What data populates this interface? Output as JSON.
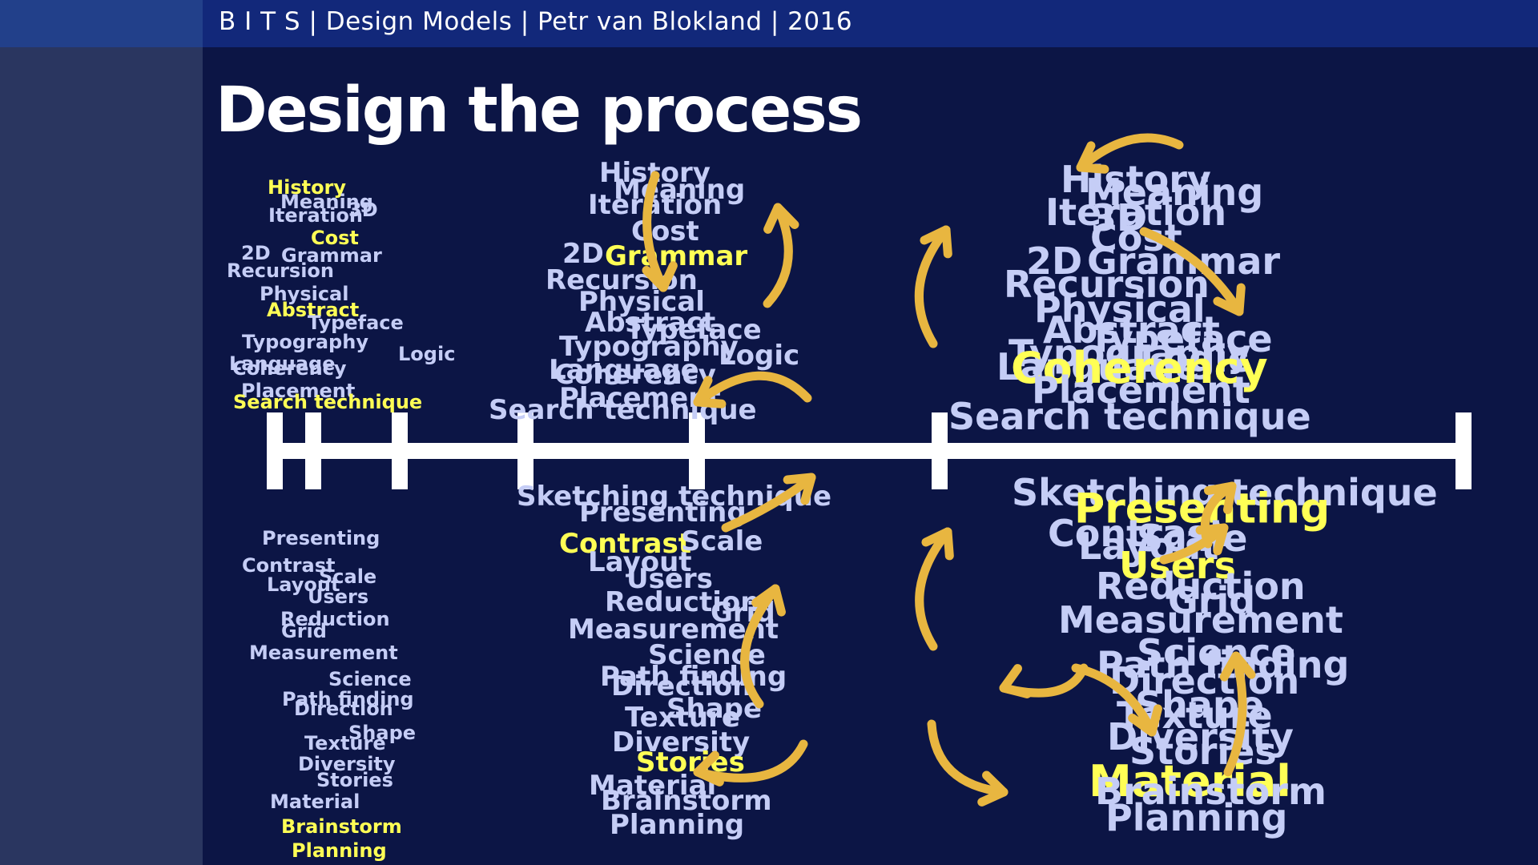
{
  "header": {
    "text": "B I T S | Design Models | Petr van Blokland | 2016"
  },
  "slide": {
    "title": "Design the process"
  },
  "colors": {
    "background": "#0c1545",
    "header": "#12287a",
    "sidebar": "#2a3660",
    "word": "#c5cdf6",
    "highlight": "#ffff55",
    "arrow": "#e8b640",
    "timeline": "#ffffff"
  },
  "columns": [
    {
      "name": "column-1",
      "words": [
        {
          "text": "History",
          "highlight": true
        },
        {
          "text": "Meaning"
        },
        {
          "text": "Iteration"
        },
        {
          "text": "3D"
        },
        {
          "text": "Cost",
          "highlight": true
        },
        {
          "text": "2D"
        },
        {
          "text": "Grammar"
        },
        {
          "text": "Recursion"
        },
        {
          "text": "Physical"
        },
        {
          "text": "Abstract",
          "highlight": true
        },
        {
          "text": "Typeface"
        },
        {
          "text": "Typography"
        },
        {
          "text": "Logic"
        },
        {
          "text": "Language"
        },
        {
          "text": "Coherency"
        },
        {
          "text": "Placement"
        },
        {
          "text": "Search technique",
          "highlight": true
        },
        {
          "text": "Presenting"
        },
        {
          "text": "Contrast"
        },
        {
          "text": "Scale"
        },
        {
          "text": "Layout"
        },
        {
          "text": "Users"
        },
        {
          "text": "Reduction"
        },
        {
          "text": "Grid"
        },
        {
          "text": "Measurement"
        },
        {
          "text": "Science"
        },
        {
          "text": "Path finding"
        },
        {
          "text": "Direction"
        },
        {
          "text": "Shape"
        },
        {
          "text": "Texture"
        },
        {
          "text": "Diversity"
        },
        {
          "text": "Stories"
        },
        {
          "text": "Material"
        },
        {
          "text": "Brainstorm",
          "highlight": true
        },
        {
          "text": "Planning",
          "highlight": true
        }
      ]
    },
    {
      "name": "column-2",
      "words": [
        {
          "text": "History"
        },
        {
          "text": "Meaning"
        },
        {
          "text": "Iteration"
        },
        {
          "text": "Cost"
        },
        {
          "text": "2D"
        },
        {
          "text": "Grammar",
          "highlight": true
        },
        {
          "text": "Recursion"
        },
        {
          "text": "Physical"
        },
        {
          "text": "Abstract"
        },
        {
          "text": "Typeface"
        },
        {
          "text": "Typography"
        },
        {
          "text": "Logic"
        },
        {
          "text": "Language"
        },
        {
          "text": "Coherency"
        },
        {
          "text": "Placement"
        },
        {
          "text": "Search technique"
        },
        {
          "text": "Sketching technique"
        },
        {
          "text": "Presenting"
        },
        {
          "text": "Contrast",
          "highlight": true
        },
        {
          "text": "Scale"
        },
        {
          "text": "Layout"
        },
        {
          "text": "Users"
        },
        {
          "text": "Reduction"
        },
        {
          "text": "Grid"
        },
        {
          "text": "Measurement"
        },
        {
          "text": "Science"
        },
        {
          "text": "Path finding"
        },
        {
          "text": "Direction"
        },
        {
          "text": "Shape"
        },
        {
          "text": "Texture"
        },
        {
          "text": "Diversity"
        },
        {
          "text": "Stories",
          "highlight": true
        },
        {
          "text": "Material"
        },
        {
          "text": "Brainstorm"
        },
        {
          "text": "Planning"
        }
      ]
    },
    {
      "name": "column-3",
      "words": [
        {
          "text": "History"
        },
        {
          "text": "Meaning"
        },
        {
          "text": "Iteration"
        },
        {
          "text": "3D"
        },
        {
          "text": "Cost"
        },
        {
          "text": "2D"
        },
        {
          "text": "Grammar"
        },
        {
          "text": "Recursion"
        },
        {
          "text": "Physical"
        },
        {
          "text": "Abstract"
        },
        {
          "text": "Typeface"
        },
        {
          "text": "Typography"
        },
        {
          "text": "Logic"
        },
        {
          "text": "Language"
        },
        {
          "text": "Coherency",
          "highlight": true
        },
        {
          "text": "Placement"
        },
        {
          "text": "Search technique"
        },
        {
          "text": "Sketching technique"
        },
        {
          "text": "Presenting",
          "highlight": true
        },
        {
          "text": "Contrast"
        },
        {
          "text": "Scale"
        },
        {
          "text": "Layout"
        },
        {
          "text": "Users",
          "highlight": true
        },
        {
          "text": "Reduction"
        },
        {
          "text": "Grid"
        },
        {
          "text": "Measurement"
        },
        {
          "text": "Science"
        },
        {
          "text": "Path finding"
        },
        {
          "text": "Direction"
        },
        {
          "text": "Shape"
        },
        {
          "text": "Texture"
        },
        {
          "text": "Diversity"
        },
        {
          "text": "Stories"
        },
        {
          "text": "Material",
          "highlight": true
        },
        {
          "text": "Brainstorm"
        },
        {
          "text": "Planning"
        }
      ]
    }
  ]
}
